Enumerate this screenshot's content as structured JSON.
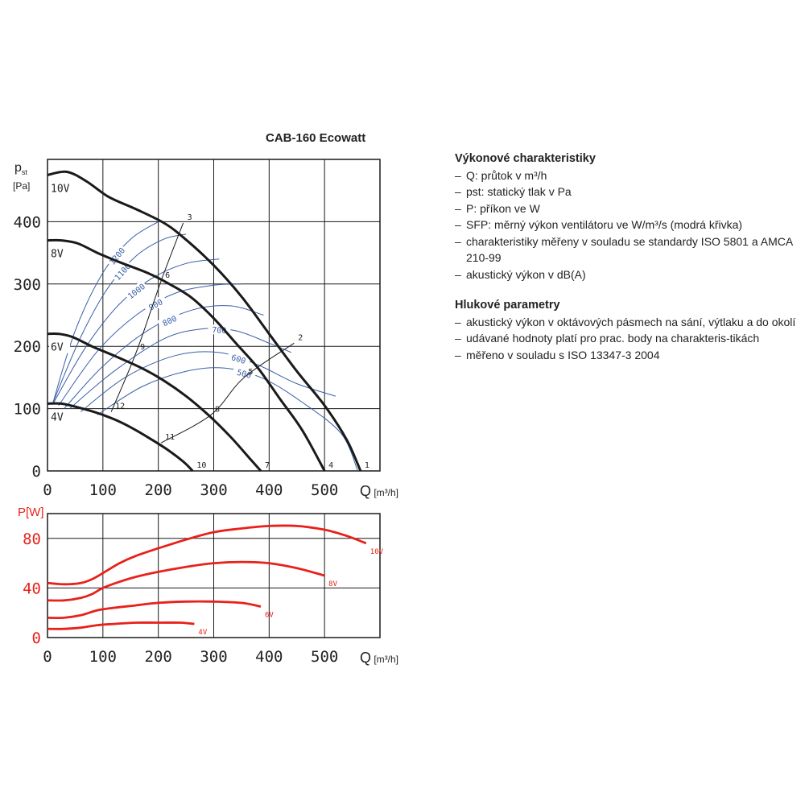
{
  "title": "CAB-160 Ecowatt",
  "performance": {
    "heading": "Výkonové charakteristiky",
    "items": [
      "Q: průtok v m³/h",
      "pst: statický tlak v Pa",
      "P: příkon ve W",
      "SFP: měrný výkon ventilátoru ve W/m³/s (modrá křivka)",
      "charakteristiky měřeny v souladu se standardy ISO 5801 a AMCA 210-99",
      "akustický výkon v dB(A)"
    ]
  },
  "noise": {
    "heading": "Hlukové parametry",
    "items": [
      "akustický výkon v oktávových pásmech na sání, výtlaku a do okolí",
      "udávané hodnoty platí pro prac. body na charakteris-tikách",
      "měřeno v souladu s ISO 13347-3 2004"
    ]
  },
  "colors": {
    "curve": "#1a1a1a",
    "sfp": "#3a5fa8",
    "power": "#e8211a",
    "grid": "#1a1a1a"
  },
  "chart_data": [
    {
      "type": "line",
      "name": "pressure",
      "xlabel": "Q [m³/h]",
      "ylabel": "pst [Pa]",
      "xlim": [
        0,
        600
      ],
      "ylim": [
        0,
        500
      ],
      "xticks": [
        0,
        100,
        200,
        300,
        400,
        500
      ],
      "yticks": [
        0,
        100,
        200,
        300,
        400
      ],
      "grid": true,
      "series": [
        {
          "name": "10V",
          "x": [
            0,
            35,
            70,
            110,
            160,
            210,
            245,
            300,
            350,
            400,
            450,
            500,
            540,
            565
          ],
          "y": [
            475,
            480,
            465,
            440,
            420,
            398,
            375,
            330,
            280,
            220,
            160,
            105,
            50,
            0
          ]
        },
        {
          "name": "8V",
          "x": [
            0,
            25,
            55,
            90,
            130,
            180,
            220,
            260,
            300,
            340,
            380,
            420,
            460,
            500
          ],
          "y": [
            370,
            370,
            365,
            350,
            335,
            318,
            300,
            278,
            245,
            205,
            165,
            115,
            65,
            0
          ]
        },
        {
          "name": "6V",
          "x": [
            0,
            20,
            45,
            80,
            120,
            170,
            210,
            250,
            290,
            330,
            365,
            385
          ],
          "y": [
            220,
            220,
            215,
            200,
            185,
            165,
            145,
            120,
            90,
            55,
            20,
            0
          ]
        },
        {
          "name": "4V",
          "x": [
            0,
            25,
            55,
            90,
            120,
            150,
            185,
            215,
            245,
            262
          ],
          "y": [
            108,
            108,
            102,
            93,
            83,
            70,
            52,
            35,
            15,
            0
          ]
        }
      ],
      "sfp_curves": [
        {
          "label": "1200",
          "x": [
            10,
            50,
            100,
            150,
            200
          ],
          "y": [
            110,
            225,
            318,
            372,
            400
          ]
        },
        {
          "label": "1100",
          "x": [
            10,
            60,
            110,
            160,
            210,
            250
          ],
          "y": [
            110,
            215,
            295,
            345,
            372,
            380
          ]
        },
        {
          "label": "1000",
          "x": [
            10,
            70,
            130,
            190,
            250,
            310
          ],
          "y": [
            108,
            200,
            268,
            310,
            333,
            340
          ]
        },
        {
          "label": "900",
          "x": [
            20,
            90,
            160,
            230,
            300,
            350
          ],
          "y": [
            105,
            192,
            250,
            285,
            298,
            300
          ]
        },
        {
          "label": "800",
          "x": [
            30,
            100,
            180,
            260,
            330,
            390
          ],
          "y": [
            100,
            168,
            225,
            258,
            265,
            250
          ]
        },
        {
          "label": "700",
          "x": [
            40,
            120,
            210,
            280,
            340,
            400,
            440
          ],
          "y": [
            100,
            160,
            212,
            228,
            225,
            205,
            190
          ]
        },
        {
          "label": "600",
          "x": [
            60,
            140,
            230,
            310,
            380,
            450,
            520
          ],
          "y": [
            95,
            150,
            185,
            190,
            170,
            140,
            120
          ]
        },
        {
          "label": "500",
          "x": [
            90,
            170,
            250,
            320,
            390,
            460,
            530,
            560
          ],
          "y": [
            90,
            135,
            160,
            165,
            148,
            110,
            60,
            0
          ]
        }
      ],
      "points": [
        {
          "label": "1",
          "x": 565,
          "y": 0
        },
        {
          "label": "2",
          "x": 445,
          "y": 205
        },
        {
          "label": "3",
          "x": 245,
          "y": 398
        },
        {
          "label": "4",
          "x": 500,
          "y": 0
        },
        {
          "label": "5",
          "x": 355,
          "y": 150
        },
        {
          "label": "6",
          "x": 205,
          "y": 305
        },
        {
          "label": "7",
          "x": 385,
          "y": 0
        },
        {
          "label": "8",
          "x": 295,
          "y": 90
        },
        {
          "label": "9",
          "x": 160,
          "y": 190
        },
        {
          "label": "10",
          "x": 262,
          "y": 0
        },
        {
          "label": "11",
          "x": 205,
          "y": 45
        },
        {
          "label": "12",
          "x": 115,
          "y": 95
        }
      ],
      "system_lines": [
        {
          "x": [
            115,
            160,
            205,
            245
          ],
          "y": [
            95,
            190,
            305,
            398
          ]
        },
        {
          "x": [
            205,
            295,
            355,
            445
          ],
          "y": [
            45,
            90,
            150,
            205
          ]
        }
      ]
    },
    {
      "type": "line",
      "name": "power",
      "xlabel": "Q [m³/h]",
      "ylabel": "P[W]",
      "xlim": [
        0,
        600
      ],
      "ylim": [
        0,
        100
      ],
      "xticks": [
        0,
        100,
        200,
        300,
        400,
        500
      ],
      "yticks": [
        0,
        40,
        80
      ],
      "grid": true,
      "series": [
        {
          "name": "10V",
          "x": [
            0,
            30,
            60,
            80,
            100,
            130,
            160,
            200,
            250,
            300,
            350,
            400,
            450,
            500,
            540,
            575
          ],
          "y": [
            44,
            43,
            44,
            47,
            52,
            60,
            66,
            72,
            79,
            85,
            88,
            90,
            90,
            87,
            82,
            76
          ]
        },
        {
          "name": "8V",
          "x": [
            0,
            30,
            60,
            80,
            100,
            130,
            160,
            200,
            250,
            300,
            350,
            400,
            450,
            500
          ],
          "y": [
            30,
            30,
            32,
            35,
            40,
            45,
            49,
            53,
            57,
            60,
            61,
            60,
            56,
            50
          ]
        },
        {
          "name": "6V",
          "x": [
            0,
            30,
            60,
            90,
            120,
            160,
            200,
            250,
            300,
            350,
            385
          ],
          "y": [
            16,
            16,
            18,
            22,
            24,
            26,
            28,
            29,
            29,
            28,
            25
          ]
        },
        {
          "name": "4V",
          "x": [
            0,
            30,
            60,
            90,
            120,
            160,
            200,
            240,
            265
          ],
          "y": [
            7,
            7,
            8,
            10,
            11,
            12,
            12,
            12,
            11
          ]
        }
      ]
    }
  ]
}
